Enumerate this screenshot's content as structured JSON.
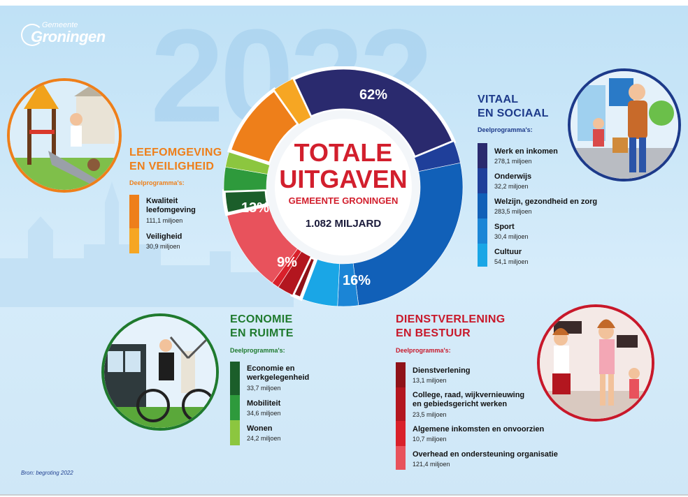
{
  "logo": {
    "small": "Gemeente",
    "big": "Groningen"
  },
  "background_year": "2022",
  "center": {
    "title_line1": "TOTALE",
    "title_line2": "UITGAVEN",
    "subtitle": "GEMEENTE GRONINGEN",
    "total": "1.082 MILJARD"
  },
  "colors": {
    "vitaal": "#1d3a8a",
    "leefomgeving": "#ee7f1a",
    "economie": "#2e7d32",
    "dienstverlening": "#c8182a"
  },
  "chart_data": {
    "type": "pie",
    "title": "TOTALE UITGAVEN GEMEENTE GRONINGEN",
    "unit": "miljoen",
    "total_label": "1.082 MILJARD",
    "groups": [
      {
        "name": "VITAAL EN SOCIAAL",
        "percent_label": "62%",
        "items": [
          {
            "name": "Werk en inkomen",
            "value": 278.1,
            "label": "278,1 miljoen",
            "color": "#2a2a6e"
          },
          {
            "name": "Onderwijs",
            "value": 32.2,
            "label": "32,2 miljoen",
            "color": "#1f3f9a"
          },
          {
            "name": "Welzijn, gezondheid en zorg",
            "value": 283.5,
            "label": "283,5 miljoen",
            "color": "#1160b8"
          },
          {
            "name": "Sport",
            "value": 30.4,
            "label": "30,4 miljoen",
            "color": "#1b85d6"
          },
          {
            "name": "Cultuur",
            "value": 54.1,
            "label": "54,1 miljoen",
            "color": "#1aa6e6"
          }
        ]
      },
      {
        "name": "DIENSTVERLENING EN BESTUUR",
        "percent_label": "16%",
        "items": [
          {
            "name": "Dienstverlening",
            "value": 13.1,
            "label": "13,1 miljoen",
            "color": "#8f1218"
          },
          {
            "name": "College, raad, wijkvernieuwing en gebiedsgericht werken",
            "value": 23.5,
            "label": "23,5 miljoen",
            "color": "#b3161f"
          },
          {
            "name": "Algemene inkomsten en onvoorzien",
            "value": 10.7,
            "label": "10,7 miljoen",
            "color": "#d9202a"
          },
          {
            "name": "Overhead en ondersteuning organisatie",
            "value": 121.4,
            "label": "121,4 miljoen",
            "color": "#e8525c"
          }
        ]
      },
      {
        "name": "ECONOMIE EN RUIMTE",
        "percent_label": "9%",
        "items": [
          {
            "name": "Economie en werkgelegenheid",
            "value": 33.7,
            "label": "33,7 miljoen",
            "color": "#1b5e2a"
          },
          {
            "name": "Mobiliteit",
            "value": 34.6,
            "label": "34,6 miljoen",
            "color": "#2e9a3c"
          },
          {
            "name": "Wonen",
            "value": 24.2,
            "label": "24,2 miljoen",
            "color": "#8cc63f"
          }
        ]
      },
      {
        "name": "LEEFOMGEVING EN VEILIGHEID",
        "percent_label": "13%",
        "items": [
          {
            "name": "Kwaliteit leefomgeving",
            "value": 111.1,
            "label": "111,1 miljoen",
            "color": "#ee7f1a"
          },
          {
            "name": "Veiligheid",
            "value": 30.9,
            "label": "30,9 miljoen",
            "color": "#f6a623"
          }
        ]
      }
    ]
  },
  "sections": {
    "vitaal": {
      "title1": "VITAAL",
      "title2": "EN SOCIAAL",
      "sub": "Deelprogramma's:"
    },
    "leef": {
      "title1": "LEEFOMGEVING",
      "title2": "EN VEILIGHEID",
      "sub": "Deelprogramma's:"
    },
    "econ": {
      "title1": "ECONOMIE",
      "title2": "EN RUIMTE",
      "sub": "Deelprogramma's:"
    },
    "dienst": {
      "title1": "DIENSTVERLENING",
      "title2": "EN BESTUUR",
      "sub": "Deelprogramma's:"
    }
  },
  "source": "Bron: begroting 2022"
}
